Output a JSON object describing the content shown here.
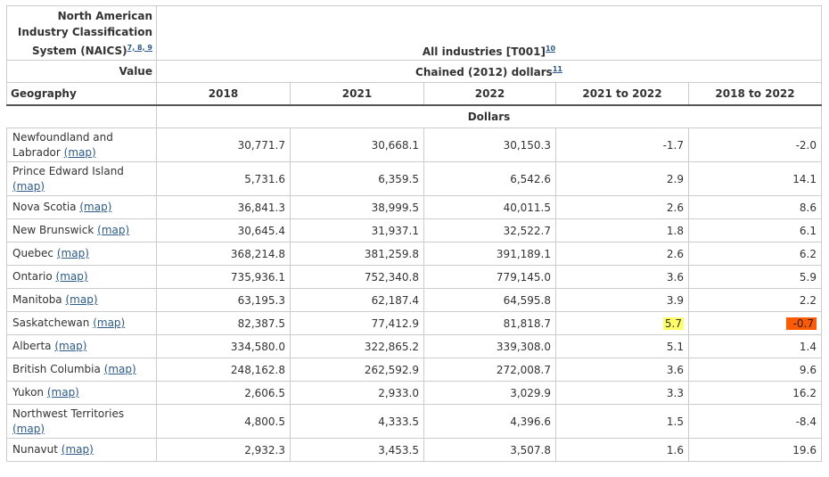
{
  "header": {
    "naics_label": "North American Industry Classification System (NAICS)",
    "naics_refs": "7, 8, 9",
    "industry": "All industries [T001]",
    "industry_ref": "10",
    "value_label": "Value",
    "value_unit": "Chained (2012) dollars",
    "value_unit_ref": "11",
    "geography_label": "Geography",
    "columns": [
      "2018",
      "2021",
      "2022",
      "2021 to 2022",
      "2018 to 2022"
    ],
    "unit_row": "Dollars"
  },
  "map_link": "(map)",
  "rows": [
    {
      "geo": "Newfoundland and Labrador",
      "v2018": "30,771.7",
      "v2021": "30,668.1",
      "v2022": "30,150.3",
      "c2122": "-1.7",
      "c1822": "-2.0"
    },
    {
      "geo": "Prince Edward Island",
      "v2018": "5,731.6",
      "v2021": "6,359.5",
      "v2022": "6,542.6",
      "c2122": "2.9",
      "c1822": "14.1"
    },
    {
      "geo": "Nova Scotia",
      "v2018": "36,841.3",
      "v2021": "38,999.5",
      "v2022": "40,011.5",
      "c2122": "2.6",
      "c1822": "8.6"
    },
    {
      "geo": "New Brunswick",
      "v2018": "30,645.4",
      "v2021": "31,937.1",
      "v2022": "32,522.7",
      "c2122": "1.8",
      "c1822": "6.1"
    },
    {
      "geo": "Quebec",
      "v2018": "368,214.8",
      "v2021": "381,259.8",
      "v2022": "391,189.1",
      "c2122": "2.6",
      "c1822": "6.2"
    },
    {
      "geo": "Ontario",
      "v2018": "735,936.1",
      "v2021": "752,340.8",
      "v2022": "779,145.0",
      "c2122": "3.6",
      "c1822": "5.9"
    },
    {
      "geo": "Manitoba",
      "v2018": "63,195.3",
      "v2021": "62,187.4",
      "v2022": "64,595.8",
      "c2122": "3.9",
      "c1822": "2.2"
    },
    {
      "geo": "Saskatchewan",
      "v2018": "82,387.5",
      "v2021": "77,412.9",
      "v2022": "81,818.7",
      "c2122": "5.7",
      "c1822": "-0.7"
    },
    {
      "geo": "Alberta",
      "v2018": "334,580.0",
      "v2021": "322,865.2",
      "v2022": "339,308.0",
      "c2122": "5.1",
      "c1822": "1.4"
    },
    {
      "geo": "British Columbia",
      "v2018": "248,162.8",
      "v2021": "262,592.9",
      "v2022": "272,008.7",
      "c2122": "3.6",
      "c1822": "9.6"
    },
    {
      "geo": "Yukon",
      "v2018": "2,606.5",
      "v2021": "2,933.0",
      "v2022": "3,029.9",
      "c2122": "3.3",
      "c1822": "16.2"
    },
    {
      "geo": "Northwest Territories",
      "v2018": "4,800.5",
      "v2021": "4,333.5",
      "v2022": "4,396.6",
      "c2122": "1.5",
      "c1822": "-8.4"
    },
    {
      "geo": "Nunavut",
      "v2018": "2,932.3",
      "v2021": "3,453.5",
      "v2022": "3,507.8",
      "c2122": "1.6",
      "c1822": "19.6"
    }
  ],
  "highlights": {
    "yellow": "#ffff66",
    "orange": "#ff5a00",
    "link": "#2b5a8a"
  }
}
